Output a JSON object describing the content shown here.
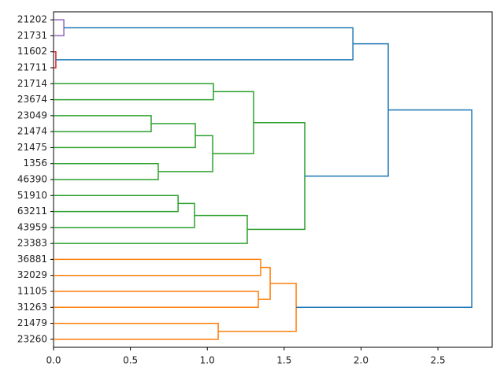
{
  "chart_data": {
    "type": "dendrogram",
    "xlim": [
      0,
      2.853
    ],
    "xticks": [
      {
        "value": 0,
        "label": "0.0"
      },
      0.5,
      {
        "value": 1,
        "label": "1.0"
      },
      1.5,
      {
        "value": 2,
        "label": "2.0"
      },
      2.5
    ],
    "tree": {
      "height": 2.72,
      "color": "#1f77b4",
      "children": [
        {
          "height": 2.177,
          "color": "#1f77b4",
          "children": [
            {
              "height": 1.947,
              "color": "#1f77b4",
              "children": [
                {
                  "height": 0.067,
                  "color": "#9467bd",
                  "children": [
                    {
                      "label": "21202"
                    },
                    {
                      "label": "21731"
                    }
                  ]
                },
                {
                  "height": 0.015,
                  "color": "#d62728",
                  "children": [
                    {
                      "label": "11602"
                    },
                    {
                      "label": "21711"
                    }
                  ]
                }
              ]
            },
            {
              "height": 1.634,
              "color": "#2ca02c",
              "children": [
                {
                  "height": 1.301,
                  "color": "#2ca02c",
                  "children": [
                    {
                      "height": 1.04,
                      "color": "#2ca02c",
                      "children": [
                        {
                          "label": "21714"
                        },
                        {
                          "label": "23674"
                        }
                      ]
                    },
                    {
                      "height": 1.035,
                      "color": "#2ca02c",
                      "children": [
                        {
                          "height": 0.922,
                          "color": "#2ca02c",
                          "children": [
                            {
                              "height": 0.635,
                              "color": "#2ca02c",
                              "children": [
                                {
                                  "label": "23049"
                                },
                                {
                                  "label": "21474"
                                }
                              ]
                            },
                            {
                              "label": "21475"
                            }
                          ]
                        },
                        {
                          "height": 0.681,
                          "color": "#2ca02c",
                          "children": [
                            {
                              "label": "1356"
                            },
                            {
                              "label": "46390"
                            }
                          ]
                        }
                      ]
                    }
                  ]
                },
                {
                  "height": 1.26,
                  "color": "#2ca02c",
                  "children": [
                    {
                      "height": 0.917,
                      "color": "#2ca02c",
                      "children": [
                        {
                          "height": 0.81,
                          "color": "#2ca02c",
                          "children": [
                            {
                              "label": "51910"
                            },
                            {
                              "label": "63211"
                            }
                          ]
                        },
                        {
                          "label": "43959"
                        }
                      ]
                    },
                    {
                      "label": "23383"
                    }
                  ]
                }
              ]
            }
          ]
        },
        {
          "height": 1.578,
          "color": "#ff7f0e",
          "children": [
            {
              "height": 1.409,
              "color": "#ff7f0e",
              "children": [
                {
                  "height": 1.347,
                  "color": "#ff7f0e",
                  "children": [
                    {
                      "label": "36881"
                    },
                    {
                      "label": "32029"
                    }
                  ]
                },
                {
                  "height": 1.332,
                  "color": "#ff7f0e",
                  "children": [
                    {
                      "label": "11105"
                    },
                    {
                      "label": "31263"
                    }
                  ]
                }
              ]
            },
            {
              "height": 1.071,
              "color": "#ff7f0e",
              "children": [
                {
                  "label": "21479"
                },
                {
                  "label": "23260"
                }
              ]
            }
          ]
        }
      ]
    }
  }
}
